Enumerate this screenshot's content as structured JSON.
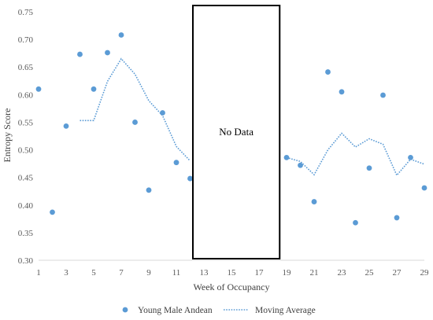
{
  "chart_data": {
    "type": "scatter",
    "ylabel": "Entropy Score",
    "xlabel": "Week of Occupancy",
    "ylim": [
      0.3,
      0.75
    ],
    "y_ticks": [
      "0.30",
      "0.35",
      "0.40",
      "0.45",
      "0.50",
      "0.55",
      "0.60",
      "0.65",
      "0.70",
      "0.75"
    ],
    "xlim": [
      1,
      29
    ],
    "x_ticks": [
      "1",
      "3",
      "5",
      "7",
      "9",
      "11",
      "13",
      "15",
      "17",
      "19",
      "21",
      "23",
      "25",
      "27",
      "29"
    ],
    "grid": false,
    "legend_position": "bottom",
    "annotation": {
      "label": "No Data",
      "x_range": [
        12.2,
        18.5
      ]
    },
    "series": [
      {
        "name": "Young Male Andean",
        "style": "markers",
        "color": "#5B9BD5",
        "x": [
          1,
          2,
          3,
          4,
          5,
          6,
          7,
          8,
          9,
          10,
          11,
          12,
          19,
          20,
          21,
          22,
          23,
          24,
          25,
          26,
          27,
          28,
          29
        ],
        "y": [
          0.61,
          0.387,
          0.543,
          0.673,
          0.61,
          0.676,
          0.708,
          0.55,
          0.427,
          0.567,
          0.477,
          0.448,
          0.486,
          0.472,
          0.406,
          0.641,
          0.605,
          0.368,
          0.467,
          0.599,
          0.377,
          0.486,
          0.431
        ]
      },
      {
        "name": "Moving Average",
        "style": "dotted-line",
        "color": "#5B9BD5",
        "x": [
          4,
          5,
          6,
          7,
          8,
          9,
          10,
          11,
          12,
          19,
          20,
          21,
          22,
          23,
          24,
          25,
          26,
          27,
          28,
          29
        ],
        "y": [
          0.553,
          0.553,
          0.624,
          0.665,
          0.637,
          0.589,
          0.562,
          0.506,
          0.48,
          0.486,
          0.479,
          0.455,
          0.5,
          0.53,
          0.505,
          0.52,
          0.51,
          0.454,
          0.483,
          0.474
        ]
      }
    ]
  }
}
